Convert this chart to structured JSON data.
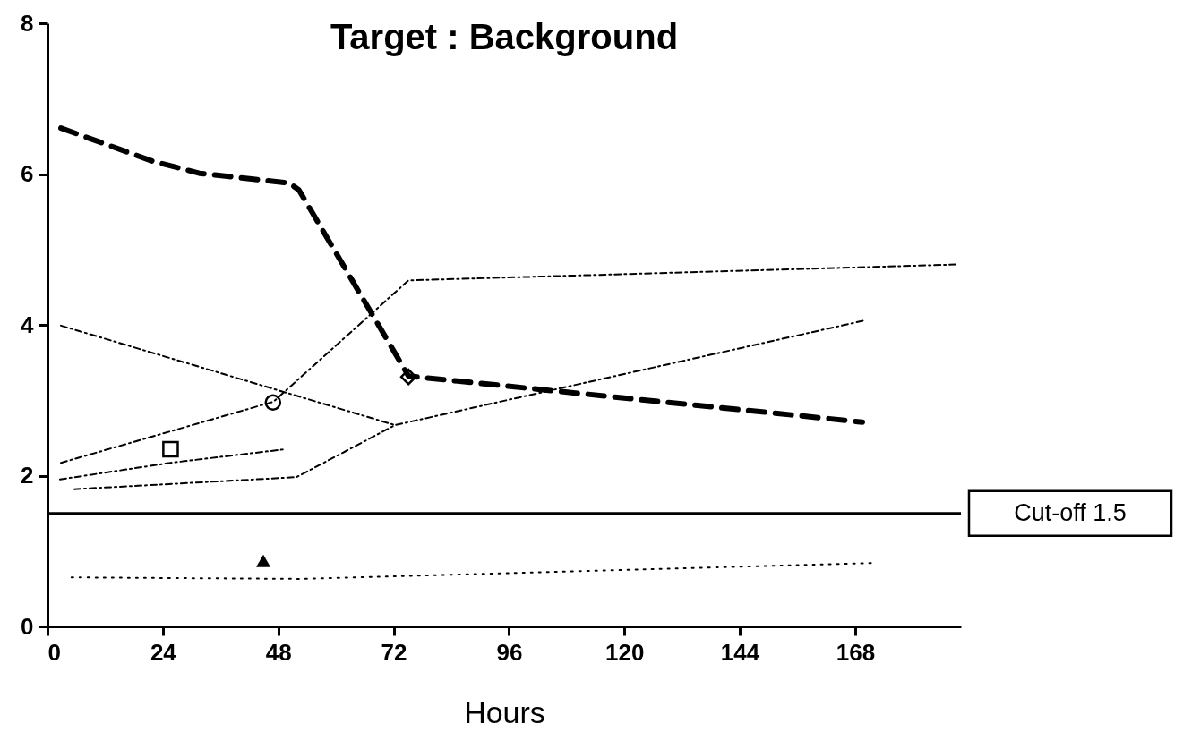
{
  "chart_data": {
    "type": "line",
    "title": "Target : Background",
    "xlabel": "Hours",
    "xlim": [
      0,
      190
    ],
    "xticks": [
      0,
      24,
      48,
      72,
      96,
      120,
      144,
      168
    ],
    "ylim": [
      0,
      8
    ],
    "yticks": [
      0,
      2,
      4,
      6,
      8
    ],
    "grid": false,
    "ref_lines": [
      {
        "axis": "y",
        "value": 1.5,
        "label": "Cut-off 1.5",
        "line_style": "solid"
      }
    ],
    "series": [
      {
        "color": "#000000",
        "line_style": "dashed",
        "x": [
          2.8,
          21.9,
          31.6,
          50.3,
          52.3,
          75.1,
          169.5
        ],
        "values": [
          6.61,
          6.17,
          6.01,
          5.88,
          5.79,
          3.32,
          2.71
        ]
      },
      {
        "color": "#000000",
        "line_style": "dashdot",
        "x": [
          2.8,
          72.3
        ],
        "values": [
          3.99,
          2.67
        ]
      },
      {
        "color": "#000000",
        "line_style": "dashdot",
        "x": [
          2.8,
          47,
          75.1,
          189
        ],
        "values": [
          2.17,
          2.98,
          4.59,
          4.8
        ]
      },
      {
        "color": "#000000",
        "line_style": "dashdot",
        "x": [
          2.6,
          25.6,
          49.5
        ],
        "values": [
          1.95,
          2.17,
          2.35
        ]
      },
      {
        "color": "#000000",
        "line_style": "dashdot",
        "x": [
          5.6,
          51.8,
          72.3,
          170.1
        ],
        "values": [
          1.82,
          1.98,
          2.67,
          4.06
        ]
      },
      {
        "color": "#000000",
        "line_style": "dotted",
        "x": [
          5,
          52.3,
          171.4
        ],
        "values": [
          0.65,
          0.63,
          0.84
        ]
      },
      {
        "type": "scatter",
        "color": "#000000",
        "marker": "square",
        "x": [
          25.6
        ],
        "values": [
          2.35
        ]
      },
      {
        "type": "scatter",
        "color": "#000000",
        "marker": "circle",
        "x": [
          46.9
        ],
        "values": [
          2.97
        ]
      },
      {
        "type": "scatter",
        "color": "#000000",
        "marker": "diamond",
        "x": [
          75.1
        ],
        "values": [
          3.31
        ]
      },
      {
        "type": "scatter",
        "color": "#000000",
        "marker": "triangle",
        "x": [
          44.9
        ],
        "values": [
          0.87
        ]
      }
    ]
  }
}
